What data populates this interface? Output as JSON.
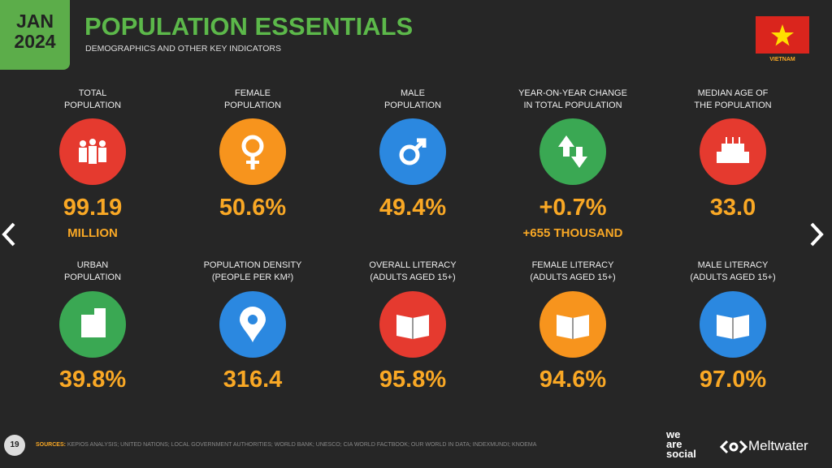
{
  "header": {
    "month": "JAN",
    "year": "2024",
    "title": "POPULATION ESSENTIALS",
    "subtitle": "DEMOGRAPHICS AND OTHER KEY INDICATORS",
    "country": "VIETNAM"
  },
  "stats": [
    {
      "label": [
        "TOTAL",
        "POPULATION"
      ],
      "value": "99.19",
      "sub": "MILLION"
    },
    {
      "label": [
        "FEMALE",
        "POPULATION"
      ],
      "value": "50.6%"
    },
    {
      "label": [
        "MALE",
        "POPULATION"
      ],
      "value": "49.4%"
    },
    {
      "label": [
        "YEAR-ON-YEAR CHANGE",
        "IN TOTAL POPULATION"
      ],
      "value": "+0.7%",
      "sub": "+655 THOUSAND"
    },
    {
      "label": [
        "MEDIAN AGE OF",
        "THE POPULATION"
      ],
      "value": "33.0"
    },
    {
      "label": [
        "URBAN",
        "POPULATION"
      ],
      "value": "39.8%"
    },
    {
      "label": [
        "POPULATION DENSITY",
        "(PEOPLE PER KM²)"
      ],
      "value": "316.4"
    },
    {
      "label": [
        "OVERALL LITERACY",
        "(ADULTS AGED 15+)"
      ],
      "value": "95.8%"
    },
    {
      "label": [
        "FEMALE LITERACY",
        "(ADULTS AGED 15+)"
      ],
      "value": "94.6%"
    },
    {
      "label": [
        "MALE LITERACY",
        "(ADULTS AGED 15+)"
      ],
      "value": "97.0%"
    }
  ],
  "footer": {
    "page": "19",
    "sources_label": "SOURCES:",
    "sources": "KEPIOS ANALYSIS; UNITED NATIONS; LOCAL GOVERNMENT AUTHORITIES; WORLD BANK; UNESCO; CIA WORLD FACTBOOK; OUR WORLD IN DATA; INDEXMUNDI; KNOEMA",
    "logo1": [
      "we",
      "are",
      "social"
    ],
    "logo2": "Meltwater"
  }
}
